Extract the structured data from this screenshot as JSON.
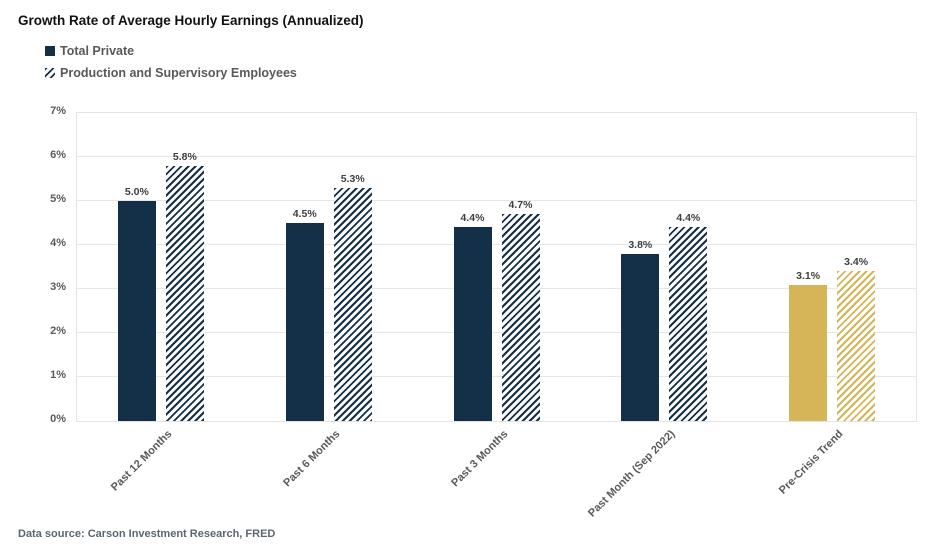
{
  "chart_data": {
    "type": "bar",
    "title": "Growth Rate of Average Hourly Earnings (Annualized)",
    "categories": [
      "Past 12 Months",
      "Past 6 Months",
      "Past 3 Months",
      "Past Month (Sep 2022)",
      "Pre-Crisis Trend"
    ],
    "series": [
      {
        "name": "Total Private",
        "style": "solid",
        "values": [
          5.0,
          4.5,
          4.4,
          3.8,
          3.1
        ]
      },
      {
        "name": "Production and Supervisory Employees",
        "style": "hatched",
        "values": [
          5.8,
          5.3,
          4.7,
          4.4,
          3.4
        ]
      }
    ],
    "value_labels": [
      [
        "5.0%",
        "4.5%",
        "4.4%",
        "3.8%",
        "3.1%"
      ],
      [
        "5.8%",
        "5.3%",
        "4.7%",
        "4.4%",
        "3.4%"
      ]
    ],
    "category_colors": [
      "#143049",
      "#143049",
      "#143049",
      "#143049",
      "#D6B558"
    ],
    "ylim": [
      0,
      7
    ],
    "ytick_step": 1,
    "ytick_labels": [
      "0%",
      "1%",
      "2%",
      "3%",
      "4%",
      "5%",
      "6%",
      "7%"
    ],
    "ytick_suffix": "%",
    "grid": true,
    "legend_position": "top-left",
    "xlabel": "",
    "ylabel": ""
  },
  "colors": {
    "navy": "#143049",
    "gold": "#D6B558",
    "gridline": "#e6e6e6",
    "text_gray": "#595959"
  },
  "footer": {
    "source_text": "Data source: Carson Investment Research, FRED"
  }
}
